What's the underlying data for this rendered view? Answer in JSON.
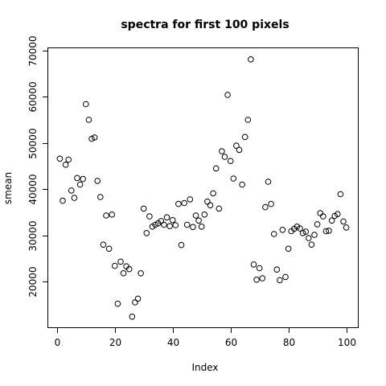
{
  "chart_data": {
    "type": "scatter",
    "title": "spectra for first 100 pixels",
    "xlabel": "Index",
    "ylabel": "smean",
    "xlim": [
      -3,
      104
    ],
    "ylim": [
      10100,
      70500
    ],
    "grid": false,
    "legend": "none",
    "point_color": "#000000",
    "x_ticks": [
      0,
      20,
      40,
      60,
      80,
      100
    ],
    "x_tick_labels": [
      "0",
      "20",
      "40",
      "60",
      "80",
      "100"
    ],
    "y_ticks": [
      20000,
      30000,
      40000,
      50000,
      60000,
      70000
    ],
    "y_tick_labels": [
      "20000",
      "30000",
      "40000",
      "50000",
      "60000",
      "70000"
    ],
    "x": [
      1,
      2,
      3,
      4,
      5,
      6,
      7,
      8,
      9,
      10,
      11,
      12,
      13,
      14,
      15,
      16,
      17,
      18,
      19,
      20,
      21,
      22,
      23,
      24,
      25,
      26,
      27,
      28,
      29,
      30,
      31,
      32,
      33,
      34,
      35,
      36,
      37,
      38,
      39,
      40,
      41,
      42,
      43,
      44,
      45,
      46,
      47,
      48,
      49,
      50,
      51,
      52,
      53,
      54,
      55,
      56,
      57,
      58,
      59,
      60,
      61,
      62,
      63,
      64,
      65,
      66,
      67,
      68,
      69,
      70,
      71,
      72,
      73,
      74,
      75,
      76,
      77,
      78,
      79,
      80,
      81,
      82,
      83,
      84,
      85,
      86,
      87,
      88,
      89,
      90,
      91,
      92,
      93,
      94,
      95,
      96,
      97,
      98,
      99,
      100
    ],
    "y": [
      46600,
      37500,
      45300,
      46400,
      39700,
      38100,
      42400,
      41000,
      42200,
      58400,
      55000,
      50900,
      51200,
      41800,
      38300,
      28000,
      34300,
      27100,
      34500,
      23400,
      15200,
      24300,
      21800,
      23300,
      22700,
      12400,
      15500,
      16300,
      21800,
      35800,
      30500,
      34100,
      31900,
      32300,
      32600,
      33100,
      32300,
      33900,
      32000,
      33300,
      32200,
      36800,
      27900,
      37000,
      32300,
      37800,
      31800,
      34300,
      33200,
      31900,
      34500,
      37300,
      36500,
      39100,
      44500,
      35800,
      48200,
      47000,
      60400,
      46100,
      42300,
      49400,
      48500,
      41000,
      51300,
      55000,
      68100,
      23700,
      20400,
      22900,
      20700,
      36100,
      41600,
      36800,
      30300,
      22600,
      20300,
      31200,
      21000,
      27100,
      30900,
      31400,
      31900,
      31500,
      30500,
      30800,
      29400,
      28000,
      30100,
      32400,
      34800,
      34100,
      30900,
      31000,
      33200,
      34200,
      34600,
      38900,
      33000,
      31700
    ]
  }
}
